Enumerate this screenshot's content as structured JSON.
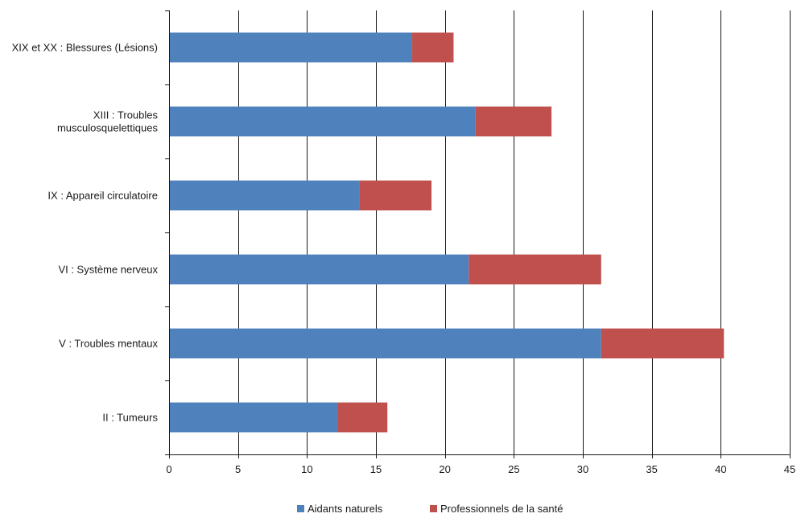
{
  "chart_data": {
    "type": "bar",
    "orientation": "horizontal",
    "stacked": true,
    "categories": [
      "XIX et XX : Blessures (Lésions)",
      "XIII : Troubles musculosquelettiques",
      "IX : Appareil circulatoire",
      "VI : Système nerveux",
      "V : Troubles mentaux",
      "II : Tumeurs"
    ],
    "category_lines": [
      [
        "XIX et XX : Blessures (Lésions)"
      ],
      [
        "XIII : Troubles",
        "musculosquelettiques"
      ],
      [
        "IX : Appareil circulatoire"
      ],
      [
        "VI : Système nerveux"
      ],
      [
        "V : Troubles mentaux"
      ],
      [
        "II : Tumeurs"
      ]
    ],
    "series": [
      {
        "name": "Aidants naturels",
        "color": "#4f81bd",
        "values": [
          17.6,
          22.2,
          13.8,
          21.7,
          31.3,
          12.2
        ]
      },
      {
        "name": "Professionnels de la santé",
        "color": "#c0504d",
        "values": [
          3.0,
          5.5,
          5.2,
          9.6,
          8.9,
          3.6
        ]
      }
    ],
    "xlim": [
      0,
      45
    ],
    "xticks": [
      "0",
      "5",
      "10",
      "15",
      "20",
      "25",
      "30",
      "35",
      "40",
      "45"
    ],
    "grid": "vertical",
    "legend_position": "bottom",
    "title": "",
    "xlabel": "",
    "ylabel": ""
  }
}
